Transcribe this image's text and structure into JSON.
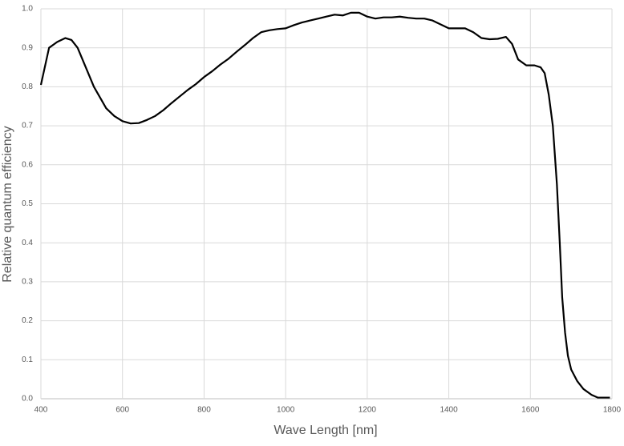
{
  "chart_data": {
    "type": "line",
    "x_label": "Wave Length [nm]",
    "y_label": "Relative quantum efficiency",
    "x": [
      400,
      420,
      440,
      460,
      475,
      490,
      510,
      530,
      560,
      580,
      600,
      620,
      640,
      660,
      680,
      700,
      720,
      740,
      760,
      780,
      800,
      820,
      840,
      860,
      880,
      900,
      920,
      940,
      960,
      980,
      1000,
      1020,
      1040,
      1060,
      1080,
      1100,
      1120,
      1140,
      1160,
      1180,
      1200,
      1220,
      1240,
      1260,
      1280,
      1300,
      1320,
      1340,
      1360,
      1380,
      1400,
      1420,
      1440,
      1460,
      1480,
      1500,
      1520,
      1540,
      1555,
      1570,
      1590,
      1610,
      1625,
      1635,
      1645,
      1655,
      1665,
      1672,
      1678,
      1685,
      1692,
      1700,
      1715,
      1730,
      1750,
      1765,
      1780,
      1795
    ],
    "series": [
      {
        "color": "#000000",
        "values": [
          0.805,
          0.9,
          0.915,
          0.925,
          0.92,
          0.9,
          0.85,
          0.8,
          0.745,
          0.725,
          0.712,
          0.706,
          0.707,
          0.715,
          0.725,
          0.74,
          0.758,
          0.775,
          0.792,
          0.807,
          0.825,
          0.84,
          0.857,
          0.872,
          0.89,
          0.907,
          0.925,
          0.94,
          0.945,
          0.948,
          0.95,
          0.958,
          0.965,
          0.97,
          0.975,
          0.98,
          0.985,
          0.983,
          0.99,
          0.99,
          0.98,
          0.975,
          0.978,
          0.978,
          0.98,
          0.977,
          0.975,
          0.975,
          0.97,
          0.96,
          0.95,
          0.95,
          0.95,
          0.94,
          0.925,
          0.922,
          0.923,
          0.928,
          0.91,
          0.87,
          0.855,
          0.855,
          0.85,
          0.835,
          0.78,
          0.7,
          0.55,
          0.4,
          0.26,
          0.17,
          0.11,
          0.075,
          0.045,
          0.025,
          0.01,
          0.003,
          0.003,
          0.003
        ]
      }
    ],
    "xlim": [
      400,
      1800
    ],
    "xticks": [
      400,
      600,
      800,
      1000,
      1200,
      1400,
      1600,
      1800
    ],
    "ylim": [
      0,
      1
    ],
    "yticks": [
      {
        "value": 0,
        "label": "0.0"
      },
      0.1,
      0.2,
      0.3,
      0.4,
      0.5,
      0.6,
      0.7,
      0.8,
      0.9,
      {
        "value": 1,
        "label": "1.0"
      }
    ],
    "grid": true
  }
}
